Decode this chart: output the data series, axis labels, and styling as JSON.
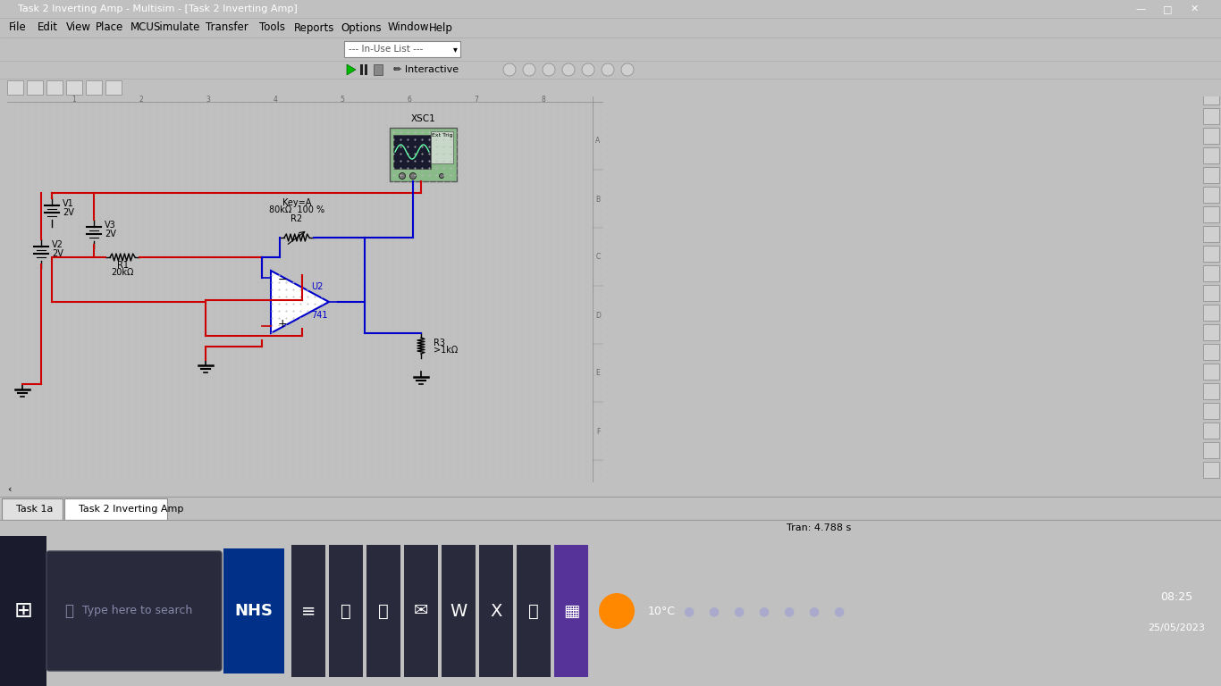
{
  "title_bar": "Task 2 Inverting Amp - Multisim - [Task 2 Inverting Amp]",
  "menu_items": [
    "File",
    "Edit",
    "View",
    "Place",
    "MCU",
    "Simulate",
    "Transfer",
    "Tools",
    "Reports",
    "Options",
    "Window",
    "Help"
  ],
  "tab1": "Task 1a",
  "tab2": "Task 2 Inverting Amp",
  "status_text": "Tran: 4.788 s",
  "date_time": "08:25\n25/05/2023",
  "temp_text": "10°C",
  "in_use_list": "--- In-Use List ---",
  "interactive_label": "Interactive",
  "wire_red": "#cc0000",
  "wire_blue": "#0000cc",
  "osc_label": "XSC1",
  "osc_bg": "#7aab7a",
  "v1_label": "V1",
  "v1_val": "2V",
  "v2_label": "V2",
  "v2_val": "2V",
  "v3_label": "V3",
  "v3_val": "2V",
  "r1_label": "R1",
  "r1_val": "20kΩ",
  "r2_label": "R2",
  "r2_val1": "80kΩ  100 %",
  "r2_val2": "Key=A",
  "r3_label": "R3",
  "r3_val": ">1kΩ",
  "opamp_label": "U2",
  "opamp_type": "741"
}
